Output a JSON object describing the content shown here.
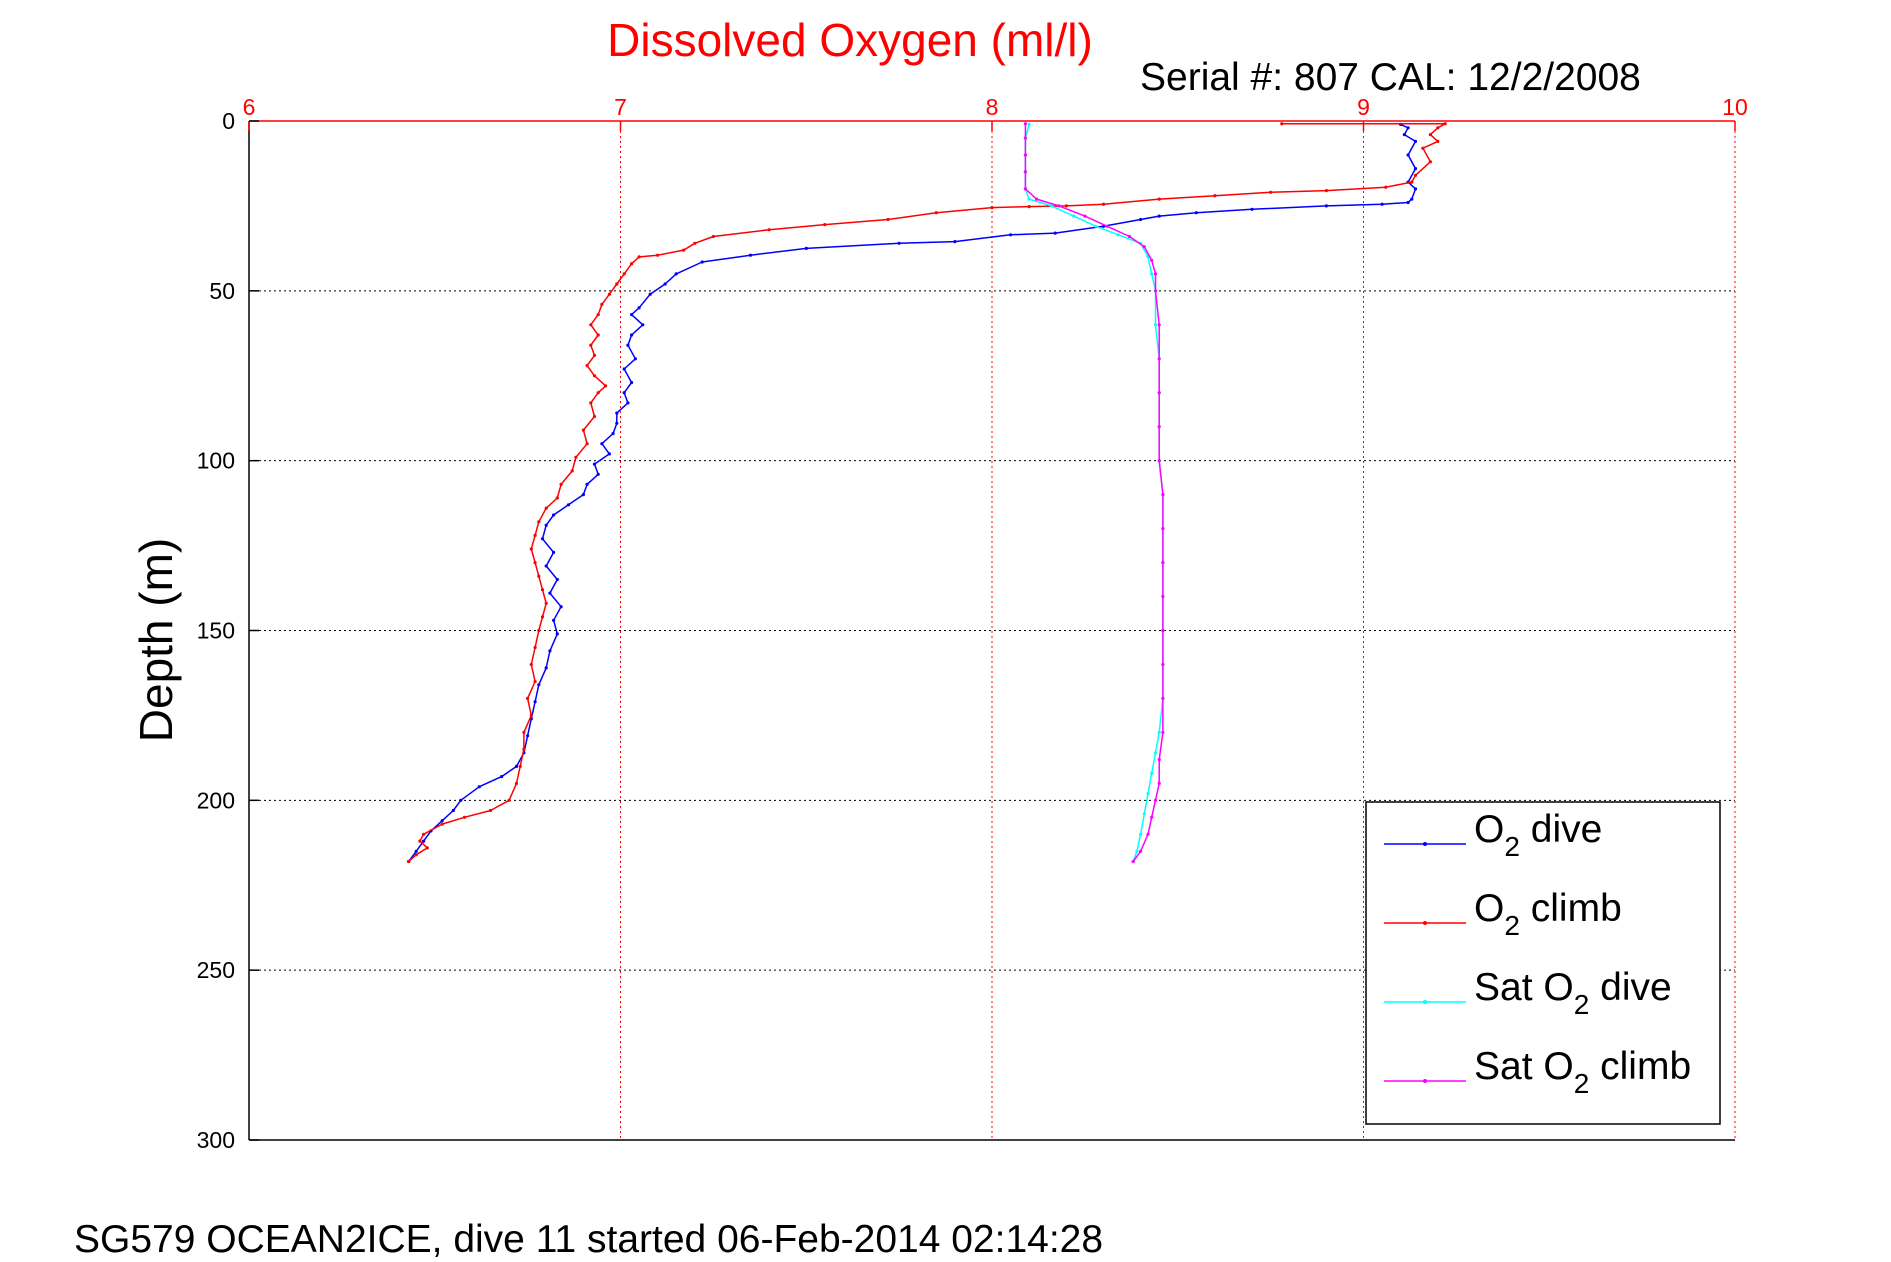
{
  "chart_data": {
    "type": "line",
    "title": "Dissolved Oxygen (ml/l)",
    "subtitle": "Serial #: 807  CAL: 12/2/2008",
    "xlabel": "",
    "ylabel": "Depth (m)",
    "xlim": [
      6,
      10
    ],
    "ylim": [
      0,
      300
    ],
    "y_reversed": true,
    "x_axis_position": "top",
    "x_ticks": [
      "6",
      "7",
      "8",
      "9",
      "10"
    ],
    "y_ticks": [
      "0",
      "50",
      "100",
      "150",
      "200",
      "250",
      "300"
    ],
    "grid": true,
    "legend_position": "bottom-right",
    "footer": "SG579 OCEAN2ICE, dive 11 started 06-Feb-2014 02:14:28",
    "colors": {
      "title": "#ff0000",
      "x_axis": "#ff0000",
      "y_axis": "#000000"
    },
    "series": [
      {
        "label": [
          "O",
          "2",
          " dive"
        ],
        "color": "#0000ff",
        "points": [
          [
            9.1,
            1
          ],
          [
            9.12,
            2
          ],
          [
            9.11,
            4
          ],
          [
            9.14,
            6
          ],
          [
            9.12,
            10
          ],
          [
            9.14,
            14
          ],
          [
            9.12,
            18
          ],
          [
            9.14,
            20
          ],
          [
            9.13,
            23
          ],
          [
            9.12,
            24
          ],
          [
            9.05,
            24.5
          ],
          [
            8.9,
            25
          ],
          [
            8.7,
            26
          ],
          [
            8.55,
            27
          ],
          [
            8.45,
            28
          ],
          [
            8.4,
            29
          ],
          [
            8.3,
            31
          ],
          [
            8.17,
            33
          ],
          [
            8.05,
            33.5
          ],
          [
            7.9,
            35.5
          ],
          [
            7.75,
            36
          ],
          [
            7.5,
            37.5
          ],
          [
            7.35,
            39.5
          ],
          [
            7.22,
            41.5
          ],
          [
            7.15,
            45
          ],
          [
            7.12,
            48
          ],
          [
            7.08,
            51
          ],
          [
            7.05,
            55
          ],
          [
            7.03,
            57
          ],
          [
            7.06,
            60
          ],
          [
            7.03,
            63
          ],
          [
            7.02,
            66
          ],
          [
            7.04,
            70
          ],
          [
            7.01,
            73
          ],
          [
            7.03,
            77
          ],
          [
            7.01,
            80
          ],
          [
            7.02,
            83
          ],
          [
            6.99,
            86
          ],
          [
            6.99,
            89
          ],
          [
            6.98,
            92
          ],
          [
            6.95,
            95
          ],
          [
            6.97,
            98
          ],
          [
            6.93,
            101
          ],
          [
            6.94,
            104
          ],
          [
            6.91,
            107
          ],
          [
            6.9,
            110
          ],
          [
            6.86,
            113
          ],
          [
            6.82,
            116
          ],
          [
            6.8,
            119
          ],
          [
            6.79,
            123
          ],
          [
            6.82,
            127
          ],
          [
            6.8,
            131
          ],
          [
            6.83,
            135
          ],
          [
            6.81,
            139
          ],
          [
            6.84,
            143
          ],
          [
            6.82,
            147
          ],
          [
            6.83,
            151
          ],
          [
            6.81,
            156
          ],
          [
            6.8,
            161
          ],
          [
            6.78,
            166
          ],
          [
            6.77,
            171
          ],
          [
            6.76,
            176
          ],
          [
            6.75,
            181
          ],
          [
            6.74,
            186
          ],
          [
            6.72,
            190
          ],
          [
            6.68,
            193
          ],
          [
            6.62,
            196
          ],
          [
            6.57,
            200
          ],
          [
            6.55,
            203
          ],
          [
            6.52,
            206
          ],
          [
            6.49,
            209
          ],
          [
            6.47,
            212
          ],
          [
            6.45,
            215
          ],
          [
            6.43,
            218
          ]
        ]
      },
      {
        "label": [
          "O",
          "2",
          " climb"
        ],
        "color": "#ff0000",
        "points": [
          [
            8.78,
            0.8
          ],
          [
            9.22,
            0.8
          ],
          [
            9.2,
            2
          ],
          [
            9.18,
            4
          ],
          [
            9.2,
            6
          ],
          [
            9.16,
            8
          ],
          [
            9.18,
            12
          ],
          [
            9.14,
            16
          ],
          [
            9.13,
            18
          ],
          [
            9.06,
            19.5
          ],
          [
            8.9,
            20.5
          ],
          [
            8.75,
            21
          ],
          [
            8.6,
            22
          ],
          [
            8.45,
            23
          ],
          [
            8.3,
            24.5
          ],
          [
            8.2,
            25
          ],
          [
            8.1,
            25.2
          ],
          [
            8.0,
            25.5
          ],
          [
            7.85,
            27
          ],
          [
            7.72,
            29
          ],
          [
            7.55,
            30.5
          ],
          [
            7.4,
            32
          ],
          [
            7.25,
            34
          ],
          [
            7.2,
            36
          ],
          [
            7.17,
            38
          ],
          [
            7.1,
            39.5
          ],
          [
            7.05,
            40
          ],
          [
            7.03,
            42
          ],
          [
            7.01,
            45
          ],
          [
            6.99,
            48
          ],
          [
            6.97,
            51
          ],
          [
            6.95,
            54
          ],
          [
            6.94,
            57
          ],
          [
            6.92,
            60
          ],
          [
            6.94,
            63
          ],
          [
            6.92,
            66
          ],
          [
            6.93,
            69
          ],
          [
            6.91,
            72
          ],
          [
            6.93,
            75
          ],
          [
            6.96,
            78
          ],
          [
            6.94,
            80
          ],
          [
            6.92,
            83
          ],
          [
            6.93,
            87
          ],
          [
            6.9,
            91
          ],
          [
            6.91,
            95
          ],
          [
            6.88,
            99
          ],
          [
            6.87,
            103
          ],
          [
            6.84,
            107
          ],
          [
            6.83,
            111
          ],
          [
            6.8,
            114
          ],
          [
            6.78,
            118
          ],
          [
            6.77,
            122
          ],
          [
            6.76,
            126
          ],
          [
            6.77,
            130
          ],
          [
            6.78,
            134
          ],
          [
            6.79,
            138
          ],
          [
            6.8,
            142
          ],
          [
            6.79,
            146
          ],
          [
            6.78,
            150
          ],
          [
            6.77,
            155
          ],
          [
            6.76,
            160
          ],
          [
            6.77,
            165
          ],
          [
            6.75,
            170
          ],
          [
            6.76,
            175
          ],
          [
            6.74,
            180
          ],
          [
            6.74,
            185
          ],
          [
            6.73,
            190
          ],
          [
            6.72,
            195
          ],
          [
            6.7,
            200
          ],
          [
            6.65,
            203
          ],
          [
            6.58,
            205
          ],
          [
            6.52,
            207
          ],
          [
            6.47,
            210
          ],
          [
            6.46,
            212
          ],
          [
            6.48,
            214
          ],
          [
            6.45,
            216
          ],
          [
            6.43,
            218
          ]
        ]
      },
      {
        "label": [
          "Sat O",
          "2",
          " dive"
        ],
        "color": "#00ffff",
        "points": [
          [
            8.1,
            1
          ],
          [
            8.09,
            5
          ],
          [
            8.09,
            10
          ],
          [
            8.09,
            15
          ],
          [
            8.09,
            20
          ],
          [
            8.1,
            23
          ],
          [
            8.16,
            25
          ],
          [
            8.22,
            28
          ],
          [
            8.28,
            31
          ],
          [
            8.34,
            33.5
          ],
          [
            8.4,
            36
          ],
          [
            8.42,
            40
          ],
          [
            8.43,
            45
          ],
          [
            8.44,
            50
          ],
          [
            8.44,
            60
          ],
          [
            8.45,
            70
          ],
          [
            8.45,
            80
          ],
          [
            8.45,
            90
          ],
          [
            8.45,
            100
          ],
          [
            8.46,
            110
          ],
          [
            8.46,
            120
          ],
          [
            8.46,
            130
          ],
          [
            8.46,
            140
          ],
          [
            8.46,
            150
          ],
          [
            8.46,
            160
          ],
          [
            8.46,
            170
          ],
          [
            8.45,
            180
          ],
          [
            8.44,
            186
          ],
          [
            8.43,
            192
          ],
          [
            8.42,
            198
          ],
          [
            8.41,
            204
          ],
          [
            8.4,
            210
          ],
          [
            8.39,
            215
          ],
          [
            8.38,
            218
          ]
        ]
      },
      {
        "label": [
          "Sat O",
          "2",
          " climb"
        ],
        "color": "#ff00ff",
        "points": [
          [
            8.09,
            0.8
          ],
          [
            8.09,
            5
          ],
          [
            8.09,
            10
          ],
          [
            8.09,
            15
          ],
          [
            8.09,
            20
          ],
          [
            8.12,
            23
          ],
          [
            8.18,
            25
          ],
          [
            8.25,
            28
          ],
          [
            8.31,
            31
          ],
          [
            8.37,
            34
          ],
          [
            8.41,
            37
          ],
          [
            8.43,
            41
          ],
          [
            8.44,
            45
          ],
          [
            8.44,
            50
          ],
          [
            8.45,
            60
          ],
          [
            8.45,
            70
          ],
          [
            8.45,
            80
          ],
          [
            8.45,
            90
          ],
          [
            8.45,
            100
          ],
          [
            8.46,
            110
          ],
          [
            8.46,
            120
          ],
          [
            8.46,
            130
          ],
          [
            8.46,
            140
          ],
          [
            8.46,
            150
          ],
          [
            8.46,
            160
          ],
          [
            8.46,
            170
          ],
          [
            8.46,
            180
          ],
          [
            8.45,
            188
          ],
          [
            8.45,
            195
          ],
          [
            8.44,
            200
          ],
          [
            8.43,
            205
          ],
          [
            8.42,
            210
          ],
          [
            8.4,
            215
          ],
          [
            8.38,
            218
          ]
        ]
      }
    ]
  }
}
